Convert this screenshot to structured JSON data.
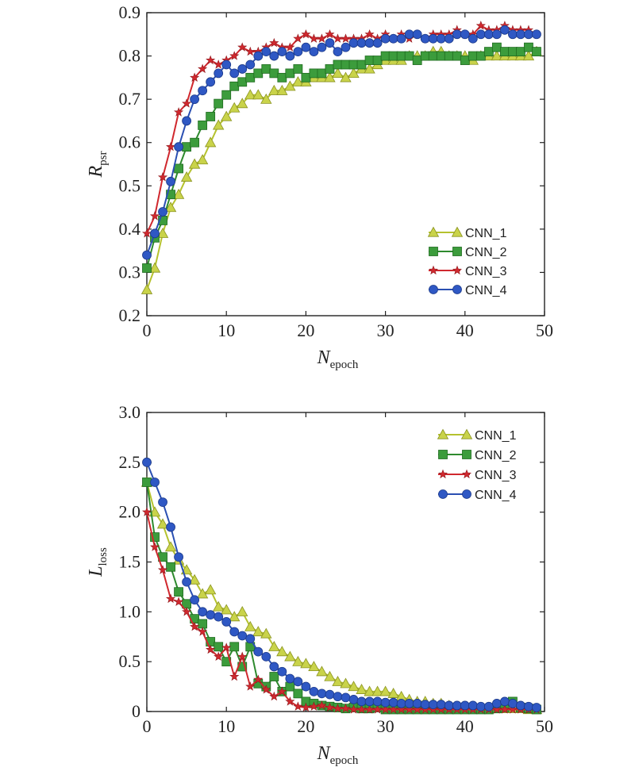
{
  "chart_data": [
    {
      "type": "line",
      "title": "",
      "xlabel": {
        "main": "N",
        "sub": "epoch"
      },
      "ylabel": {
        "main": "R",
        "sub": "psr"
      },
      "xlim": [
        0,
        50
      ],
      "ylim": [
        0.2,
        0.9
      ],
      "xticks": [
        "0",
        "10",
        "20",
        "30",
        "40",
        "50"
      ],
      "yticks": [
        "0.2",
        "0.3",
        "0.4",
        "0.5",
        "0.6",
        "0.7",
        "0.8",
        "0.9"
      ],
      "grid": false,
      "legend_position": "lower-right",
      "x": [
        0,
        1,
        2,
        3,
        4,
        5,
        6,
        7,
        8,
        9,
        10,
        11,
        12,
        13,
        14,
        15,
        16,
        17,
        18,
        19,
        20,
        21,
        22,
        23,
        24,
        25,
        26,
        27,
        28,
        29,
        30,
        31,
        32,
        33,
        34,
        35,
        36,
        37,
        38,
        39,
        40,
        41,
        42,
        43,
        44,
        45,
        46,
        47,
        48,
        49
      ],
      "series": [
        {
          "name": "CNN_1",
          "color": "#b5c22e",
          "marker": "triangle",
          "values": [
            0.26,
            0.31,
            0.39,
            0.45,
            0.48,
            0.52,
            0.55,
            0.56,
            0.6,
            0.64,
            0.66,
            0.68,
            0.69,
            0.71,
            0.71,
            0.7,
            0.72,
            0.72,
            0.73,
            0.74,
            0.74,
            0.75,
            0.75,
            0.75,
            0.76,
            0.75,
            0.76,
            0.77,
            0.77,
            0.78,
            0.79,
            0.79,
            0.79,
            0.8,
            0.8,
            0.8,
            0.81,
            0.81,
            0.8,
            0.8,
            0.8,
            0.79,
            0.8,
            0.8,
            0.8,
            0.8,
            0.8,
            0.8,
            0.8,
            0.81
          ]
        },
        {
          "name": "CNN_2",
          "color": "#2e8a2e",
          "marker": "square",
          "values": [
            0.31,
            0.38,
            0.42,
            0.48,
            0.54,
            0.59,
            0.6,
            0.64,
            0.66,
            0.69,
            0.71,
            0.73,
            0.74,
            0.75,
            0.76,
            0.77,
            0.76,
            0.75,
            0.76,
            0.77,
            0.75,
            0.76,
            0.76,
            0.77,
            0.78,
            0.78,
            0.78,
            0.78,
            0.79,
            0.79,
            0.8,
            0.8,
            0.8,
            0.8,
            0.79,
            0.8,
            0.8,
            0.8,
            0.8,
            0.8,
            0.79,
            0.8,
            0.8,
            0.81,
            0.82,
            0.81,
            0.81,
            0.81,
            0.82,
            0.81
          ]
        },
        {
          "name": "CNN_3",
          "color": "#d0282e",
          "marker": "star",
          "values": [
            0.39,
            0.43,
            0.52,
            0.59,
            0.67,
            0.69,
            0.75,
            0.77,
            0.79,
            0.78,
            0.79,
            0.8,
            0.82,
            0.81,
            0.81,
            0.82,
            0.83,
            0.82,
            0.82,
            0.84,
            0.85,
            0.84,
            0.84,
            0.85,
            0.84,
            0.84,
            0.84,
            0.84,
            0.85,
            0.84,
            0.85,
            0.84,
            0.85,
            0.84,
            0.85,
            0.84,
            0.85,
            0.85,
            0.85,
            0.86,
            0.85,
            0.85,
            0.87,
            0.86,
            0.86,
            0.87,
            0.86,
            0.86,
            0.86,
            0.85
          ]
        },
        {
          "name": "CNN_4",
          "color": "#2a4fb2",
          "marker": "circle",
          "values": [
            0.34,
            0.39,
            0.44,
            0.51,
            0.59,
            0.65,
            0.7,
            0.72,
            0.74,
            0.76,
            0.78,
            0.76,
            0.77,
            0.78,
            0.8,
            0.81,
            0.8,
            0.81,
            0.8,
            0.81,
            0.82,
            0.81,
            0.82,
            0.83,
            0.81,
            0.82,
            0.83,
            0.83,
            0.83,
            0.83,
            0.84,
            0.84,
            0.84,
            0.85,
            0.85,
            0.84,
            0.84,
            0.84,
            0.84,
            0.85,
            0.85,
            0.84,
            0.85,
            0.85,
            0.85,
            0.86,
            0.85,
            0.85,
            0.85,
            0.85
          ]
        }
      ]
    },
    {
      "type": "line",
      "title": "",
      "xlabel": {
        "main": "N",
        "sub": "epoch"
      },
      "ylabel": {
        "main": "L",
        "sub": "loss"
      },
      "xlim": [
        0,
        50
      ],
      "ylim": [
        0,
        3.0
      ],
      "xticks": [
        "0",
        "10",
        "20",
        "30",
        "40",
        "50"
      ],
      "yticks": [
        "0",
        "0.5",
        "1.0",
        "1.5",
        "2.0",
        "2.5",
        "3.0"
      ],
      "grid": false,
      "legend_position": "upper-right",
      "x": [
        0,
        1,
        2,
        3,
        4,
        5,
        6,
        7,
        8,
        9,
        10,
        11,
        12,
        13,
        14,
        15,
        16,
        17,
        18,
        19,
        20,
        21,
        22,
        23,
        24,
        25,
        26,
        27,
        28,
        29,
        30,
        31,
        32,
        33,
        34,
        35,
        36,
        37,
        38,
        39,
        40,
        41,
        42,
        43,
        44,
        45,
        46,
        47,
        48,
        49
      ],
      "series": [
        {
          "name": "CNN_1",
          "color": "#b5c22e",
          "marker": "triangle",
          "values": [
            2.3,
            2.0,
            1.88,
            1.65,
            1.52,
            1.42,
            1.32,
            1.18,
            1.22,
            1.05,
            1.02,
            0.95,
            1.0,
            0.85,
            0.8,
            0.78,
            0.65,
            0.6,
            0.55,
            0.5,
            0.48,
            0.45,
            0.4,
            0.35,
            0.3,
            0.28,
            0.25,
            0.22,
            0.2,
            0.2,
            0.2,
            0.18,
            0.15,
            0.12,
            0.1,
            0.1,
            0.08,
            0.08,
            0.06,
            0.05,
            0.05,
            0.05,
            0.04,
            0.04,
            0.03,
            0.03,
            0.03,
            0.03,
            0.02,
            0.02
          ]
        },
        {
          "name": "CNN_2",
          "color": "#2e8a2e",
          "marker": "square",
          "values": [
            2.3,
            1.75,
            1.55,
            1.45,
            1.2,
            1.08,
            0.93,
            0.88,
            0.7,
            0.65,
            0.5,
            0.65,
            0.45,
            0.65,
            0.28,
            0.25,
            0.35,
            0.2,
            0.25,
            0.18,
            0.1,
            0.08,
            0.06,
            0.05,
            0.04,
            0.03,
            0.04,
            0.03,
            0.03,
            0.04,
            0.02,
            0.02,
            0.02,
            0.02,
            0.02,
            0.02,
            0.02,
            0.02,
            0.02,
            0.02,
            0.02,
            0.02,
            0.02,
            0.02,
            0.03,
            0.04,
            0.1,
            0.04,
            0.03,
            0.02
          ]
        },
        {
          "name": "CNN_3",
          "color": "#d0282e",
          "marker": "star",
          "values": [
            2.0,
            1.65,
            1.42,
            1.13,
            1.1,
            1.0,
            0.85,
            0.8,
            0.62,
            0.55,
            0.64,
            0.35,
            0.55,
            0.25,
            0.32,
            0.22,
            0.15,
            0.2,
            0.1,
            0.05,
            0.04,
            0.05,
            0.06,
            0.04,
            0.03,
            0.03,
            0.02,
            0.02,
            0.02,
            0.02,
            0.02,
            0.02,
            0.02,
            0.02,
            0.02,
            0.02,
            0.02,
            0.02,
            0.02,
            0.02,
            0.02,
            0.02,
            0.02,
            0.02,
            0.02,
            0.02,
            0.02,
            0.02,
            0.02,
            0.02
          ]
        },
        {
          "name": "CNN_4",
          "color": "#2a4fb2",
          "marker": "circle",
          "values": [
            2.5,
            2.3,
            2.1,
            1.85,
            1.55,
            1.3,
            1.12,
            1.0,
            0.97,
            0.95,
            0.9,
            0.8,
            0.76,
            0.73,
            0.6,
            0.55,
            0.45,
            0.4,
            0.33,
            0.3,
            0.25,
            0.2,
            0.18,
            0.17,
            0.15,
            0.14,
            0.12,
            0.1,
            0.1,
            0.1,
            0.09,
            0.09,
            0.08,
            0.08,
            0.08,
            0.07,
            0.07,
            0.07,
            0.06,
            0.06,
            0.06,
            0.06,
            0.05,
            0.05,
            0.08,
            0.1,
            0.08,
            0.06,
            0.05,
            0.04
          ]
        }
      ]
    }
  ]
}
